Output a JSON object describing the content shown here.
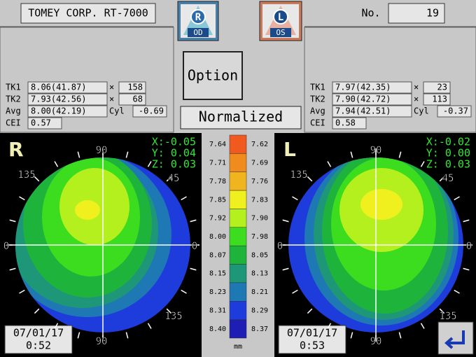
{
  "header": {
    "title": "TOMEY CORP. RT-7000",
    "od_icon": {
      "letter": "R",
      "label": "OD"
    },
    "os_icon": {
      "letter": "L",
      "label": "OS"
    },
    "number_label": "No.",
    "number": "19"
  },
  "controls": {
    "option": "Option",
    "normalized": "Normalized"
  },
  "left_panel": {
    "rows": [
      {
        "label": "TK1",
        "value": "8.06(41.87)",
        "sep": "×",
        "extra": "158"
      },
      {
        "label": "TK2",
        "value": "7.93(42.56)",
        "sep": "×",
        "extra": "68"
      },
      {
        "label": "Avg",
        "value": "8.00(42.19)",
        "sep": "Cyl",
        "extra": "-0.69"
      },
      {
        "label": "CEI",
        "value": "0.57"
      }
    ]
  },
  "right_panel": {
    "rows": [
      {
        "label": "TK1",
        "value": "7.97(42.35)",
        "sep": "×",
        "extra": "23"
      },
      {
        "label": "TK2",
        "value": "7.90(42.72)",
        "sep": "×",
        "extra": "113"
      },
      {
        "label": "Avg",
        "value": "7.94(42.51)",
        "sep": "Cyl",
        "extra": "-0.37"
      },
      {
        "label": "CEI",
        "value": "0.58"
      }
    ]
  },
  "left_map": {
    "eye": "R",
    "coords": [
      "X:-0.05",
      "Y: 0.04",
      "Z: 0.03"
    ],
    "angles": [
      "90",
      "45",
      "0",
      "135",
      "0",
      "135",
      "90"
    ],
    "date": "07/01/17",
    "time": "0:52"
  },
  "right_map": {
    "eye": "L",
    "coords": [
      "X:-0.02",
      "Y: 0.00",
      "Z: 0.03"
    ],
    "angles": [
      "90",
      "135",
      "45",
      "0",
      "0",
      "135",
      "90"
    ],
    "date": "07/01/17",
    "time": "0:53"
  },
  "scale": {
    "left": [
      "7.64",
      "7.71",
      "7.78",
      "7.85",
      "7.92",
      "8.00",
      "8.07",
      "8.15",
      "8.23",
      "8.31",
      "8.40"
    ],
    "right": [
      "7.62",
      "7.69",
      "7.76",
      "7.83",
      "7.90",
      "7.98",
      "8.05",
      "8.13",
      "8.21",
      "8.29",
      "8.37"
    ],
    "unit": "mm"
  }
}
